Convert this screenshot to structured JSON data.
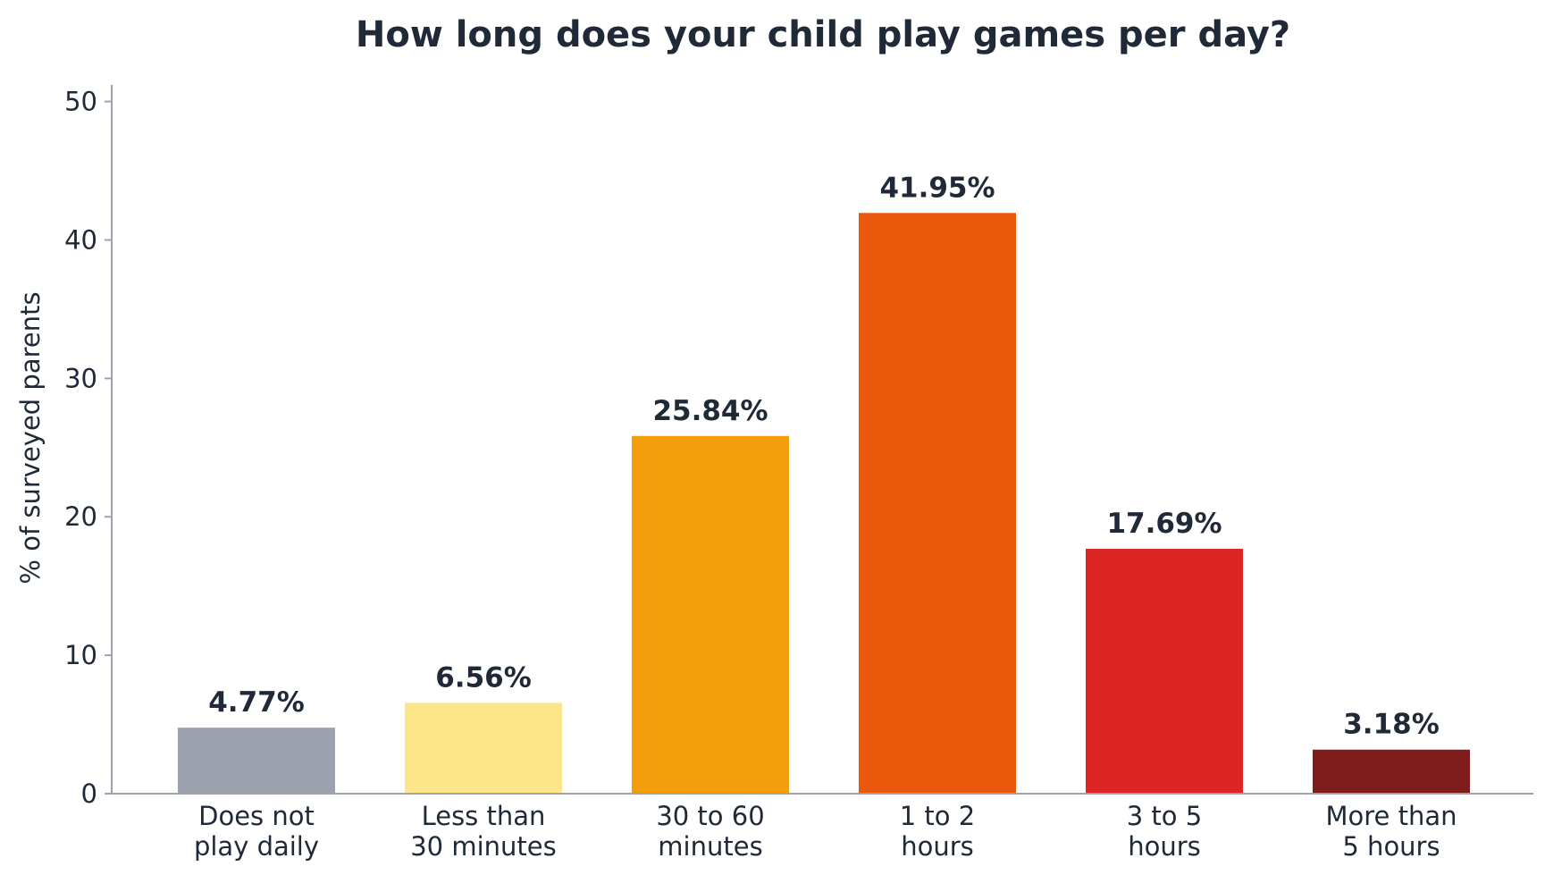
{
  "chart_data": {
    "type": "bar",
    "title": "How long does your child play games per day?",
    "xlabel": "",
    "ylabel": "% of surveyed parents",
    "ylim": [
      0,
      51.2
    ],
    "yticks": [
      0,
      10,
      20,
      30,
      40,
      50
    ],
    "grid": false,
    "categories": [
      [
        "Does not",
        "play daily"
      ],
      [
        "Less than",
        "30 minutes"
      ],
      [
        "30 to 60",
        "minutes"
      ],
      [
        "1 to 2",
        "hours"
      ],
      [
        "3 to 5",
        "hours"
      ],
      [
        "More than",
        "5 hours"
      ]
    ],
    "values": [
      4.77,
      6.56,
      25.84,
      41.95,
      17.69,
      3.18
    ],
    "data_labels": [
      "4.77%",
      "6.56%",
      "25.84%",
      "41.95%",
      "17.69%",
      "3.18%"
    ],
    "colors": [
      "#9ca3af",
      "#fde68a",
      "#f59e0b",
      "#ea580c",
      "#dc2626",
      "#7f1d1d"
    ]
  }
}
